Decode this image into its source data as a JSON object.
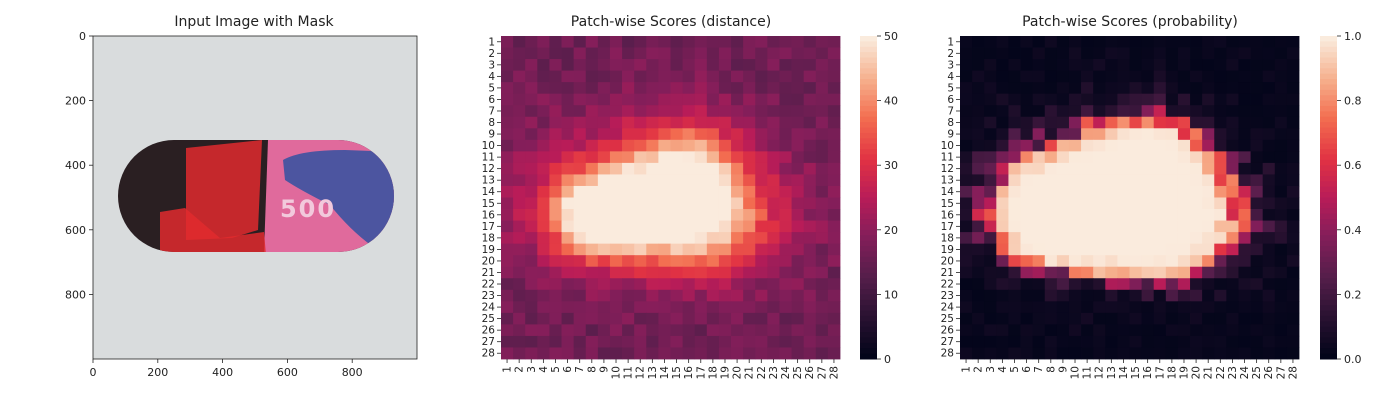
{
  "chart_data": [
    {
      "type": "image",
      "title": "Input Image with Mask",
      "xticks": [
        0,
        200,
        400,
        600,
        800
      ],
      "yticks": [
        0,
        200,
        400,
        600,
        800
      ],
      "xlim": [
        0,
        1000
      ],
      "ylim": [
        1000,
        0
      ],
      "image_content": {
        "background": "#d9dcdd",
        "pill_dark": "#2a1f22",
        "pill_pink": "#e06a9c",
        "pill_blue": "#4c55a0",
        "mask_red": "#e02a2e",
        "imprint": "500",
        "imprint_color": "#f2c9dc"
      }
    },
    {
      "type": "heatmap",
      "title": "Patch-wise Scores (distance)",
      "rows": 28,
      "cols": 28,
      "row_labels": [
        "1",
        "2",
        "3",
        "4",
        "5",
        "6",
        "7",
        "8",
        "9",
        "10",
        "11",
        "12",
        "13",
        "14",
        "15",
        "16",
        "17",
        "18",
        "19",
        "20",
        "21",
        "22",
        "23",
        "24",
        "25",
        "26",
        "27",
        "28"
      ],
      "col_labels": [
        "1",
        "2",
        "3",
        "4",
        "5",
        "6",
        "7",
        "8",
        "9",
        "10",
        "11",
        "12",
        "13",
        "14",
        "15",
        "16",
        "17",
        "18",
        "19",
        "20",
        "21",
        "22",
        "23",
        "24",
        "25",
        "26",
        "27",
        "28"
      ],
      "vmin": 0,
      "vmax": 50,
      "colorbar_ticks": [
        0,
        10,
        20,
        30,
        40,
        50
      ],
      "colormap": "rocket",
      "background_level": 16,
      "blobs": [
        {
          "row": 16,
          "col": 8.5,
          "sr": 2.6,
          "sc": 3.0,
          "amp": 34
        },
        {
          "row": 12.5,
          "col": 15.5,
          "sr": 3.2,
          "sc": 3.5,
          "amp": 28
        },
        {
          "row": 17,
          "col": 16.5,
          "sr": 3.0,
          "sc": 4.5,
          "amp": 26
        },
        {
          "row": 14,
          "col": 11.5,
          "sr": 4.5,
          "sc": 8.0,
          "amp": 10
        }
      ]
    },
    {
      "type": "heatmap",
      "title": "Patch-wise Scores (probability)",
      "rows": 28,
      "cols": 28,
      "row_labels": [
        "1",
        "2",
        "3",
        "4",
        "5",
        "6",
        "7",
        "8",
        "9",
        "10",
        "11",
        "12",
        "13",
        "14",
        "15",
        "16",
        "17",
        "18",
        "19",
        "20",
        "21",
        "22",
        "23",
        "24",
        "25",
        "26",
        "27",
        "28"
      ],
      "col_labels": [
        "1",
        "2",
        "3",
        "4",
        "5",
        "6",
        "7",
        "8",
        "9",
        "10",
        "11",
        "12",
        "13",
        "14",
        "15",
        "16",
        "17",
        "18",
        "19",
        "20",
        "21",
        "22",
        "23",
        "24",
        "25",
        "26",
        "27",
        "28"
      ],
      "vmin": 0,
      "vmax": 1,
      "colorbar_ticks": [
        "0.0",
        "0.2",
        "0.4",
        "0.6",
        "0.8",
        "1.0"
      ],
      "colormap": "rocket",
      "derived_from": "sigmoid of distance map",
      "logistic_center": 26,
      "logistic_scale": 2.2
    }
  ]
}
